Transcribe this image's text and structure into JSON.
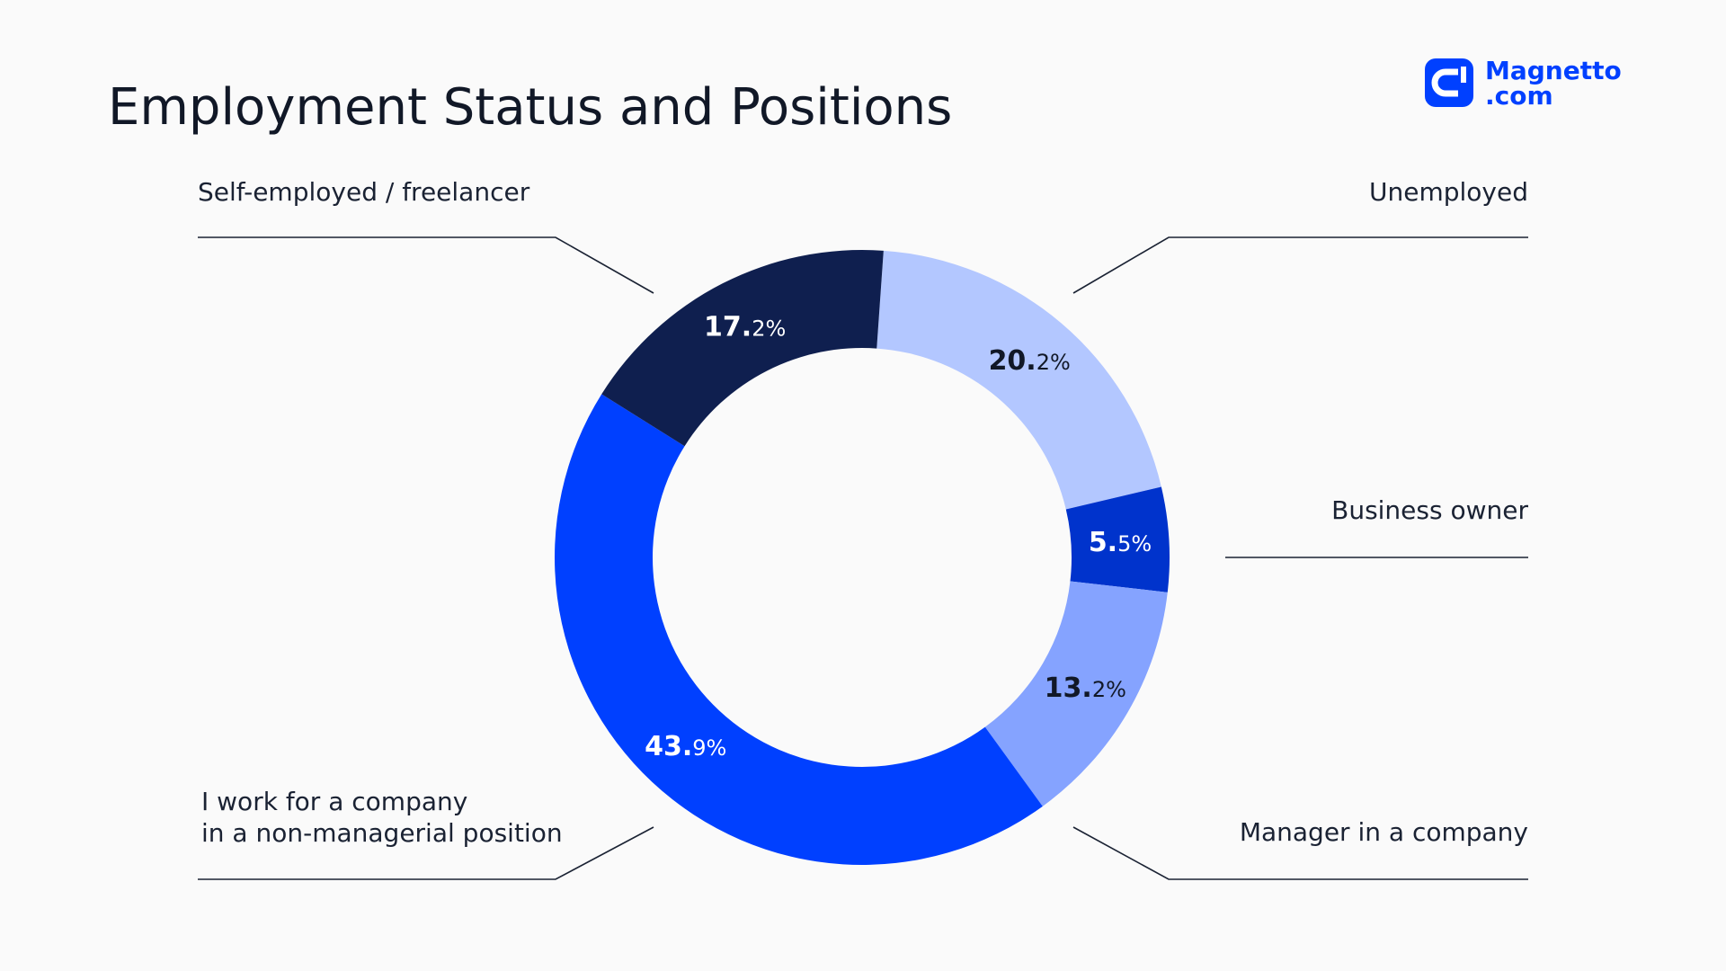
{
  "chart_data": {
    "type": "donut",
    "title": "Employment Status and Positions",
    "categories": [
      "Unemployed",
      "Business owner",
      "Manager in a company",
      "I work for a company\nin a non-managerial position",
      "Self-employed / freelancer"
    ],
    "values": [
      20.2,
      5.5,
      13.2,
      43.9,
      17.2
    ],
    "value_labels": [
      "20.2%",
      "5.5%",
      "13.2%",
      "43.9%",
      "17.2%"
    ],
    "colors": [
      "#b3c7ff",
      "#0033cc",
      "#85a3ff",
      "#0040ff",
      "#0f1f4f"
    ]
  },
  "logo": [
    "Magnetto",
    ".com"
  ]
}
